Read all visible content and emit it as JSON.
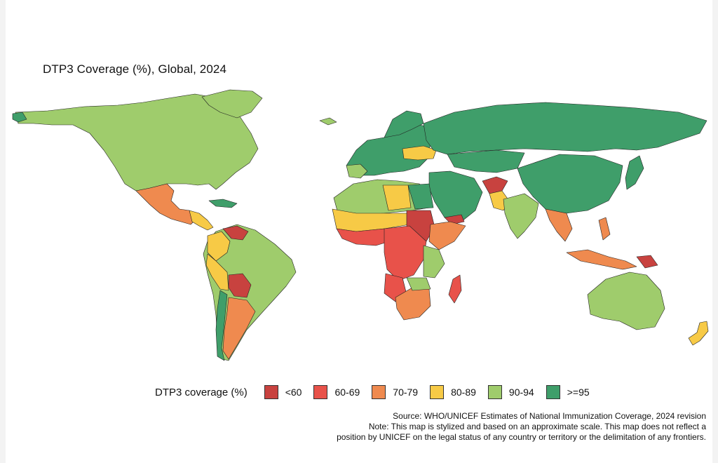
{
  "title": "DTP3 Coverage (%), Global, 2024",
  "legend": {
    "title": "DTP3 coverage (%)",
    "items": [
      {
        "label": "<60",
        "color": "#c8423f"
      },
      {
        "label": "60-69",
        "color": "#e8524a"
      },
      {
        "label": "70-79",
        "color": "#ef8a4f"
      },
      {
        "label": "80-89",
        "color": "#f7ca46"
      },
      {
        "label": "90-94",
        "color": "#9fcc6c"
      },
      {
        "label": ">=95",
        "color": "#3f9e6a"
      }
    ]
  },
  "notes": {
    "source": "Source: WHO/UNICEF Estimates of National Immunization Coverage, 2024 revision",
    "note_line1": "Note: This map is stylized and based on an approximate scale. This map does not reflect a",
    "note_line2": "position by UNICEF on the legal status of any country or territory or the delimitation of any frontiers."
  },
  "map": {
    "background": "#ffffff",
    "border_color": "#222222"
  }
}
